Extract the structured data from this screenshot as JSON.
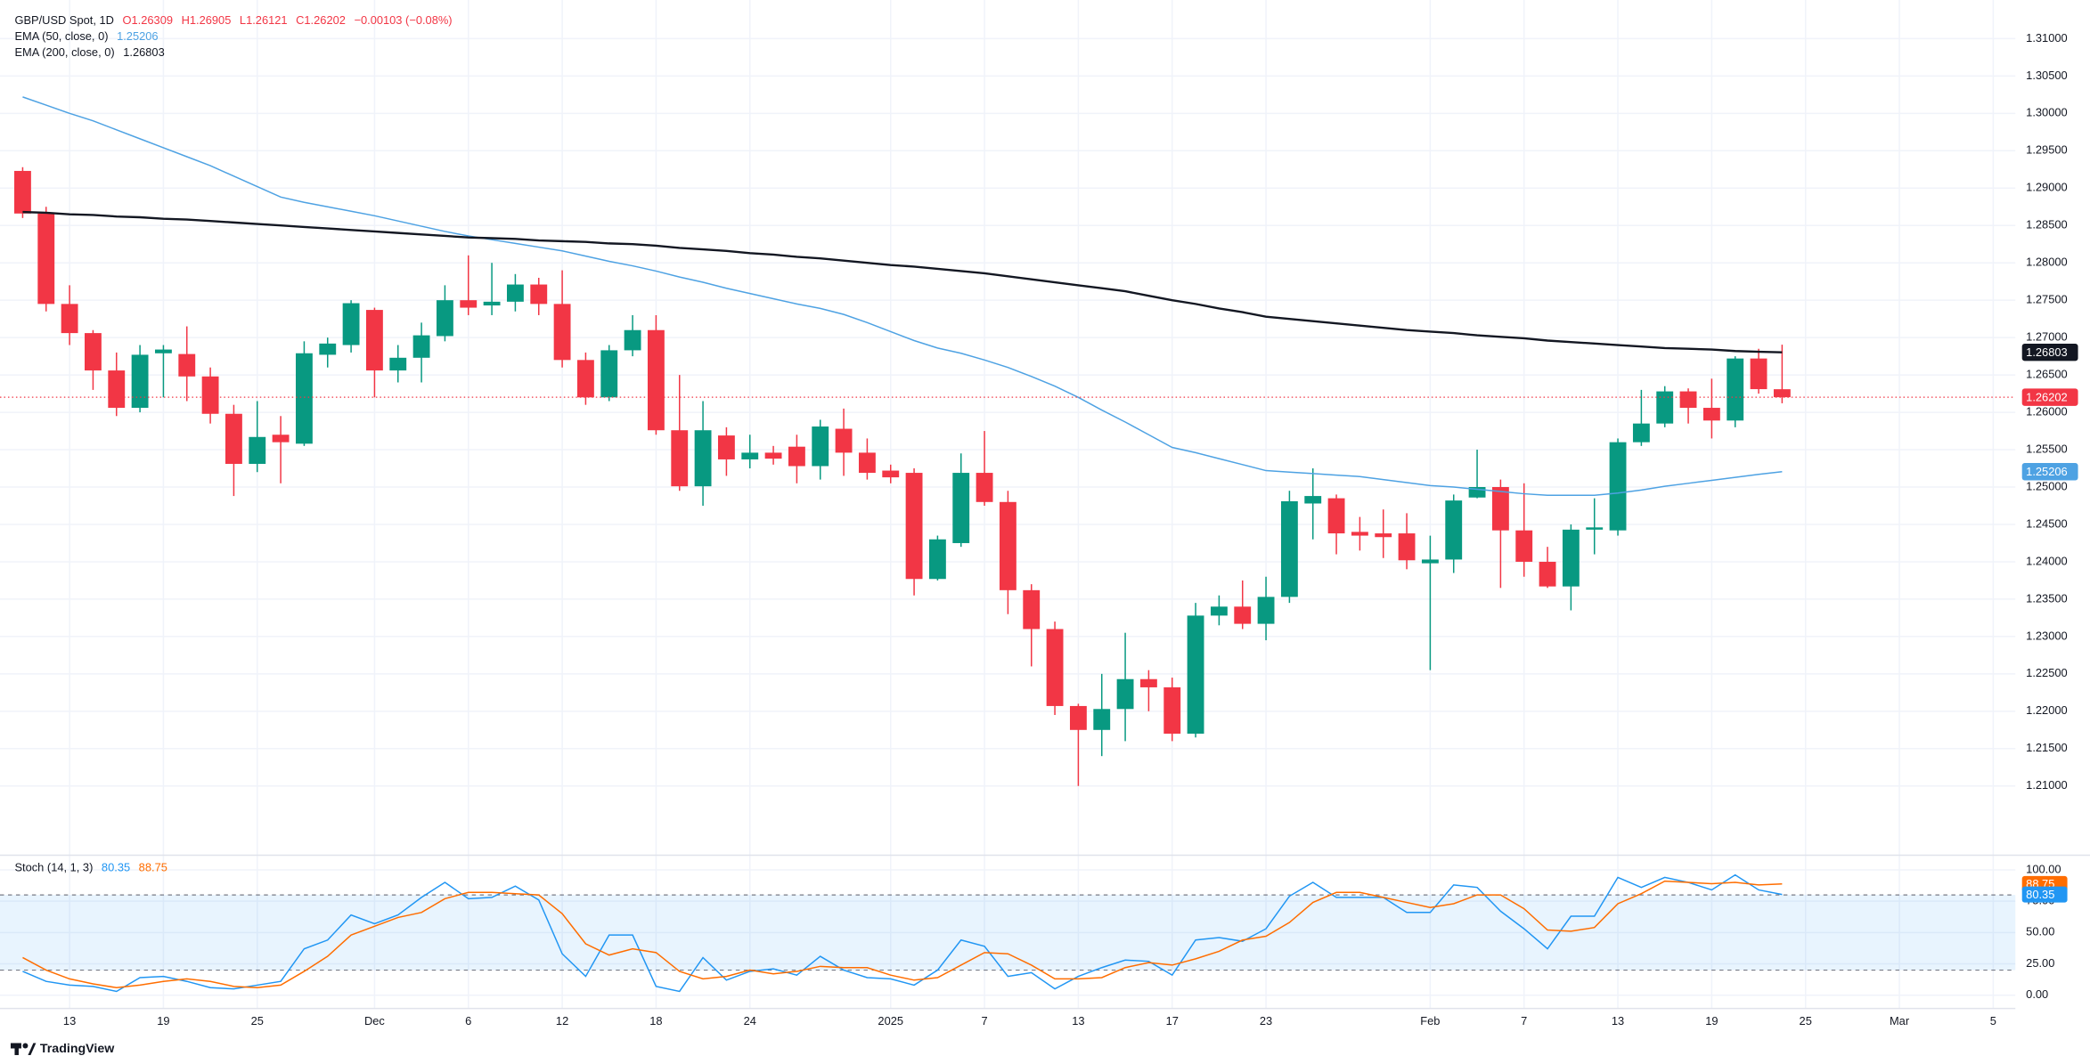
{
  "footer": "TradingView",
  "chart_data": [
    {
      "type": "candlestick",
      "title": "GBP/USD Spot, 1D",
      "header_values": [
        "O1.26309",
        "H1.26905",
        "L1.26121",
        "C1.26202",
        "−0.00103 (−0.08%)"
      ],
      "up_color": "#089981",
      "down_color": "#f23645",
      "categories": [
        null,
        null,
        "13",
        null,
        null,
        null,
        "19",
        null,
        null,
        null,
        "25",
        null,
        null,
        null,
        null,
        "Dec",
        null,
        null,
        null,
        "6",
        null,
        null,
        null,
        "12",
        null,
        null,
        null,
        "18",
        null,
        null,
        null,
        "24",
        null,
        null,
        null,
        null,
        null,
        "2025",
        null,
        null,
        null,
        "7",
        null,
        null,
        null,
        "13",
        null,
        null,
        null,
        "17",
        null,
        null,
        null,
        "23",
        null,
        null,
        null,
        null,
        null,
        null,
        "Feb",
        null,
        null,
        null,
        "7",
        null,
        null,
        null,
        "13",
        null,
        null,
        null,
        "19",
        null,
        null,
        null,
        "25",
        null,
        null,
        null,
        "Mar",
        null,
        null,
        null,
        "5"
      ],
      "open": [
        1.2923,
        1.2866,
        1.2745,
        1.2706,
        1.2656,
        1.2606,
        1.2679,
        1.2678,
        1.2648,
        1.2598,
        1.2531,
        1.257,
        1.2558,
        1.2677,
        1.269,
        1.2737,
        1.2656,
        1.2673,
        1.2702,
        1.275,
        1.2743,
        1.2748,
        1.2771,
        1.2745,
        1.267,
        1.262,
        1.2683,
        1.271,
        1.2576,
        1.2501,
        1.2569,
        1.2537,
        1.2546,
        1.2554,
        1.2528,
        1.2578,
        1.2546,
        1.2522,
        1.2519,
        1.2377,
        1.2425,
        1.2519,
        1.248,
        1.2362,
        1.231,
        1.2207,
        1.2175,
        1.2203,
        1.2243,
        1.2232,
        1.217,
        1.2328,
        1.234,
        1.2317,
        1.2353,
        1.2478,
        1.2485,
        1.244,
        1.2438,
        1.2438,
        1.2398,
        1.2403,
        1.2486,
        1.25,
        1.2442,
        1.24,
        1.2367,
        1.2443,
        1.2442,
        1.256,
        1.2585,
        1.2628,
        1.2606,
        1.2589,
        1.2672,
        1.26309,
        null,
        null,
        null,
        null,
        null,
        null,
        null,
        null,
        null
      ],
      "high": [
        1.2928,
        1.2875,
        1.277,
        1.271,
        1.268,
        1.269,
        1.269,
        1.2715,
        1.266,
        1.261,
        1.2615,
        1.2595,
        1.2695,
        1.27,
        1.275,
        1.274,
        1.269,
        1.272,
        1.277,
        1.281,
        1.28,
        1.2785,
        1.278,
        1.279,
        1.268,
        1.269,
        1.273,
        1.273,
        1.265,
        1.2615,
        1.258,
        1.257,
        1.2555,
        1.257,
        1.259,
        1.2605,
        1.2565,
        1.253,
        1.2525,
        1.2435,
        1.2545,
        1.2575,
        1.2495,
        1.237,
        1.232,
        1.221,
        1.225,
        1.2305,
        1.2255,
        1.2245,
        1.2345,
        1.2355,
        1.2375,
        1.238,
        1.2495,
        1.2525,
        1.249,
        1.246,
        1.247,
        1.2465,
        1.2435,
        1.249,
        1.255,
        1.251,
        1.2505,
        1.242,
        1.245,
        1.2485,
        1.2565,
        1.263,
        1.2635,
        1.2632,
        1.2645,
        1.2675,
        1.2685,
        1.26905,
        null,
        null,
        null,
        null,
        null,
        null,
        null,
        null,
        null
      ],
      "low": [
        1.286,
        1.2735,
        1.269,
        1.263,
        1.2595,
        1.26,
        1.262,
        1.2615,
        1.2585,
        1.2488,
        1.252,
        1.2505,
        1.2555,
        1.266,
        1.268,
        1.262,
        1.264,
        1.264,
        1.2695,
        1.273,
        1.273,
        1.2735,
        1.273,
        1.266,
        1.261,
        1.2615,
        1.2675,
        1.257,
        1.2495,
        1.2475,
        1.2515,
        1.2525,
        1.253,
        1.2505,
        1.251,
        1.2515,
        1.251,
        1.2505,
        1.2355,
        1.2375,
        1.242,
        1.2475,
        1.233,
        1.226,
        1.2195,
        1.21,
        1.214,
        1.216,
        1.22,
        1.216,
        1.2165,
        1.2315,
        1.231,
        1.2295,
        1.2345,
        1.243,
        1.241,
        1.2415,
        1.2405,
        1.239,
        1.2255,
        1.2385,
        1.2485,
        1.2365,
        1.238,
        1.2365,
        1.2335,
        1.241,
        1.2435,
        1.2555,
        1.258,
        1.2585,
        1.2565,
        1.258,
        1.2625,
        1.26121,
        null,
        null,
        null,
        null,
        null,
        null,
        null,
        null,
        null
      ],
      "close": [
        1.2866,
        1.2745,
        1.2706,
        1.2656,
        1.2606,
        1.2677,
        1.2684,
        1.2648,
        1.2598,
        1.2531,
        1.2567,
        1.256,
        1.2679,
        1.2692,
        1.2746,
        1.2656,
        1.2673,
        1.2703,
        1.275,
        1.274,
        1.2748,
        1.2771,
        1.2745,
        1.267,
        1.262,
        1.2683,
        1.271,
        1.2576,
        1.2501,
        1.2576,
        1.2537,
        1.2546,
        1.2538,
        1.2528,
        1.2581,
        1.2546,
        1.2519,
        1.2513,
        1.2377,
        1.243,
        1.2519,
        1.248,
        1.2362,
        1.231,
        1.2207,
        1.2175,
        1.2203,
        1.2243,
        1.2232,
        1.217,
        1.2328,
        1.234,
        1.2317,
        1.2353,
        1.2481,
        1.2488,
        1.2438,
        1.2435,
        1.2433,
        1.2402,
        1.2403,
        1.2482,
        1.25,
        1.2442,
        1.24,
        1.2367,
        1.2443,
        1.2446,
        1.256,
        1.2585,
        1.2628,
        1.2606,
        1.2589,
        1.2672,
        1.2631,
        1.26202,
        null,
        null,
        null,
        null,
        null,
        null,
        null,
        null,
        null
      ],
      "lines": [
        {
          "name": "EMA (50, close, 0)",
          "color": "#4ea2e3",
          "values": [
            1.3022,
            1.3011,
            1.3,
            1.299,
            1.2978,
            1.2966,
            1.2954,
            1.2942,
            1.293,
            1.2916,
            1.2902,
            1.2888,
            1.2881,
            1.2875,
            1.2869,
            1.2863,
            1.2856,
            1.2849,
            1.2842,
            1.2836,
            1.2831,
            1.2826,
            1.2821,
            1.2816,
            1.2809,
            1.2802,
            1.2796,
            1.2789,
            1.2781,
            1.2774,
            1.2766,
            1.2759,
            1.2752,
            1.2745,
            1.2739,
            1.2731,
            1.272,
            1.2708,
            1.2696,
            1.2686,
            1.2679,
            1.267,
            1.266,
            1.2648,
            1.2635,
            1.262,
            1.2603,
            1.2587,
            1.257,
            1.2553,
            1.2546,
            1.2538,
            1.253,
            1.2522,
            1.252,
            1.2518,
            1.2516,
            1.2514,
            1.251,
            1.2506,
            1.2502,
            1.25,
            1.2497,
            1.2494,
            1.2491,
            1.2489,
            1.2489,
            1.2489,
            1.2492,
            1.2496,
            1.2501,
            1.2505,
            1.2509,
            1.2513,
            1.2517,
            1.25206,
            null,
            null,
            null,
            null,
            null,
            null,
            null,
            null,
            null
          ]
        },
        {
          "name": "EMA (200, close, 0)",
          "color": "#131722",
          "values": [
            1.2868,
            1.2867,
            1.2865,
            1.2864,
            1.2862,
            1.2861,
            1.2859,
            1.2858,
            1.2856,
            1.2854,
            1.2852,
            1.285,
            1.2848,
            1.2846,
            1.2844,
            1.2842,
            1.284,
            1.2838,
            1.2836,
            1.2834,
            1.2833,
            1.2832,
            1.283,
            1.2829,
            1.2828,
            1.2826,
            1.2825,
            1.2823,
            1.282,
            1.2818,
            1.2816,
            1.2813,
            1.2811,
            1.2808,
            1.2806,
            1.2803,
            1.28,
            1.2797,
            1.2795,
            1.2792,
            1.2789,
            1.2786,
            1.2782,
            1.2778,
            1.2774,
            1.277,
            1.2766,
            1.2762,
            1.2756,
            1.275,
            1.2745,
            1.2739,
            1.2734,
            1.2728,
            1.2725,
            1.2722,
            1.2719,
            1.2716,
            1.2713,
            1.271,
            1.2708,
            1.2706,
            1.2703,
            1.2701,
            1.2699,
            1.2696,
            1.2694,
            1.2692,
            1.269,
            1.2688,
            1.2686,
            1.2685,
            1.2684,
            1.2682,
            1.2681,
            1.26803,
            null,
            null,
            null,
            null,
            null,
            null,
            null,
            null,
            null
          ]
        }
      ],
      "ylim": [
        1.20091,
        1.31517
      ],
      "yticks": [
        {
          "value": 1.21,
          "label": "1.21000"
        },
        {
          "value": 1.215,
          "label": "1.21500"
        },
        {
          "value": 1.22,
          "label": "1.22000"
        },
        {
          "value": 1.225,
          "label": "1.22500"
        },
        {
          "value": 1.23,
          "label": "1.23000"
        },
        {
          "value": 1.235,
          "label": "1.23500"
        },
        {
          "value": 1.24,
          "label": "1.24000"
        },
        {
          "value": 1.245,
          "label": "1.24500"
        },
        {
          "value": 1.25,
          "label": "1.25000"
        },
        {
          "value": 1.255,
          "label": "1.25500"
        },
        {
          "value": 1.26,
          "label": "1.26000"
        },
        {
          "value": 1.265,
          "label": "1.26500"
        },
        {
          "value": 1.27,
          "label": "1.27000"
        },
        {
          "value": 1.275,
          "label": "1.27500"
        },
        {
          "value": 1.28,
          "label": "1.28000"
        },
        {
          "value": 1.285,
          "label": "1.28500"
        },
        {
          "value": 1.29,
          "label": "1.29000"
        },
        {
          "value": 1.295,
          "label": "1.29500"
        },
        {
          "value": 1.3,
          "label": "1.30000"
        },
        {
          "value": 1.305,
          "label": "1.30500"
        },
        {
          "value": 1.31,
          "label": "1.31000"
        }
      ],
      "grid": true
    },
    {
      "type": "line",
      "title": "Stoch (14, 1, 3)",
      "series": [
        {
          "color": "#2196f3",
          "values": [
            19,
            11,
            8,
            7,
            3,
            14,
            15,
            11,
            6,
            5,
            8,
            11,
            37,
            44,
            64,
            57,
            64,
            78,
            90,
            77,
            78,
            87,
            76,
            33,
            15,
            48,
            48,
            7,
            3,
            30,
            12,
            19,
            21,
            16,
            31,
            20,
            14,
            13,
            8,
            20,
            44,
            39,
            15,
            18,
            5,
            15,
            22,
            28,
            27,
            16,
            44,
            46,
            43,
            53,
            79,
            90,
            78,
            78,
            78,
            66,
            66,
            88,
            86,
            67,
            53,
            37,
            63,
            63,
            94,
            86,
            94,
            90,
            84,
            96,
            84,
            80.35,
            null,
            null,
            null,
            null,
            null,
            null,
            null,
            null,
            null
          ]
        },
        {
          "color": "#ff6d00",
          "values": [
            30,
            20,
            13,
            9,
            6,
            8,
            11,
            13,
            11,
            7,
            6,
            8,
            19,
            31,
            48,
            55,
            62,
            66,
            77,
            82,
            82,
            81,
            80,
            65,
            41,
            32,
            37,
            34,
            19,
            13,
            15,
            20,
            17,
            19,
            23,
            22,
            22,
            16,
            12,
            14,
            24,
            34,
            33,
            24,
            13,
            13,
            14,
            22,
            26,
            24,
            29,
            35,
            44,
            47,
            58,
            74,
            82,
            82,
            78,
            74,
            70,
            73,
            80,
            80,
            69,
            52,
            51,
            54,
            73,
            81,
            91,
            90,
            89,
            90,
            88,
            88.75,
            null,
            null,
            null,
            null,
            null,
            null,
            null,
            null,
            null
          ]
        }
      ],
      "levels": [
        80,
        20
      ],
      "ylim": [
        -10.6,
        110.6
      ],
      "yticks": [
        {
          "value": 0,
          "label": "0.00"
        },
        {
          "value": 25,
          "label": "25.00"
        },
        {
          "value": 50,
          "label": "50.00"
        },
        {
          "value": 75,
          "label": "75.00"
        },
        {
          "value": 100,
          "label": "100.00"
        }
      ]
    }
  ]
}
